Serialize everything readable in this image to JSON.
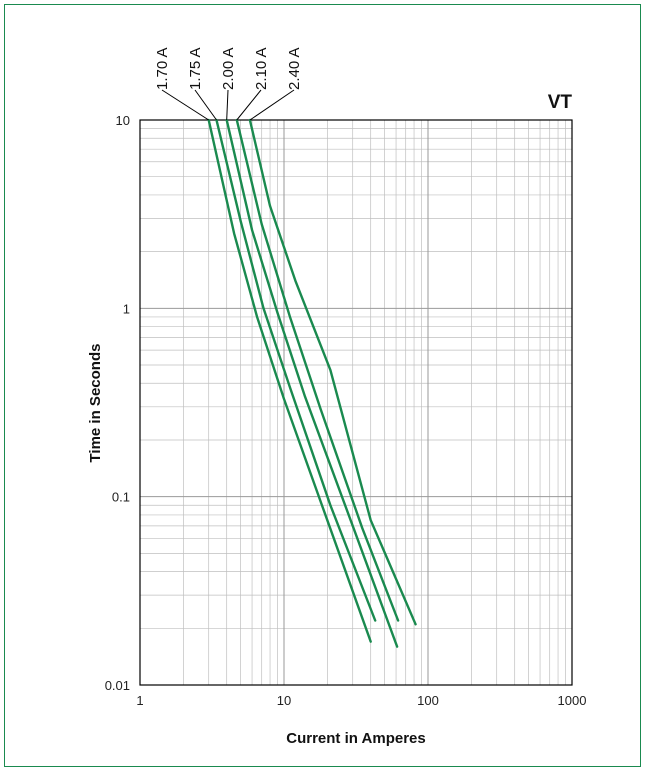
{
  "chart_data": {
    "type": "line",
    "title": "VT",
    "xlabel": "Current in Amperes",
    "ylabel": "Time in Seconds",
    "x_scale": "log",
    "y_scale": "log",
    "xlim": [
      1,
      1000
    ],
    "ylim": [
      0.01,
      10
    ],
    "x_ticks": [
      "1",
      "10",
      "100",
      "1000"
    ],
    "y_ticks": [
      "0.01",
      "0.1",
      "1",
      "10"
    ],
    "grid": true,
    "colors": {
      "line": "#1a8a4f",
      "frame": "#1a8a4f",
      "grid": "#bfbfbf"
    },
    "series": [
      {
        "name": "1.70 A",
        "x": [
          3.0,
          4.5,
          6.5,
          10,
          20,
          40
        ],
        "y": [
          10,
          2.5,
          0.9,
          0.33,
          0.075,
          0.017
        ]
      },
      {
        "name": "1.75 A",
        "x": [
          3.4,
          5.0,
          7.2,
          11,
          21,
          43
        ],
        "y": [
          10,
          2.9,
          1.0,
          0.38,
          0.09,
          0.022
        ]
      },
      {
        "name": "2.00 A",
        "x": [
          4.0,
          6.0,
          9.0,
          14,
          30,
          61
        ],
        "y": [
          10,
          2.6,
          0.95,
          0.34,
          0.07,
          0.016
        ]
      },
      {
        "name": "2.10 A",
        "x": [
          4.7,
          7.0,
          11,
          18,
          35,
          62
        ],
        "y": [
          10,
          2.8,
          0.9,
          0.29,
          0.068,
          0.022
        ]
      },
      {
        "name": "2.40 A",
        "x": [
          5.8,
          8.0,
          12,
          21,
          40,
          82
        ],
        "y": [
          10,
          3.5,
          1.4,
          0.47,
          0.075,
          0.021
        ]
      }
    ]
  }
}
